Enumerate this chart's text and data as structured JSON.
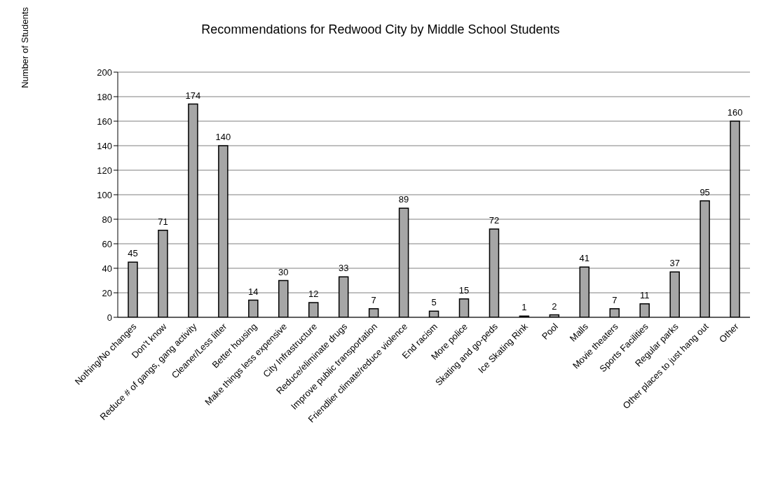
{
  "chart_data": {
    "type": "bar",
    "title": "Recommendations for Redwood City by Middle School Students",
    "ylabel": "Number of Students",
    "categories": [
      "Nothing/No changes",
      "Don't know",
      "Reduce # of gangs, gang activity",
      "Cleaner/Less litter",
      "Better housing",
      "Make things less expensive",
      "City Infrastructure",
      "Reduce/eliminate drugs",
      "Improve public transportation",
      "Friendlier climate/reduce violence",
      "End racism",
      "More police",
      "Skating and go-peds",
      "Ice Skating Rink",
      "Pool",
      "Malls",
      "Movie theaters",
      "Sports Facilities",
      "Regular parks",
      "Other places to just hang out",
      "Other"
    ],
    "values": [
      45,
      71,
      174,
      140,
      14,
      30,
      12,
      33,
      7,
      89,
      5,
      15,
      72,
      1,
      2,
      41,
      7,
      11,
      37,
      95,
      160
    ],
    "color": "#a6a6a6",
    "ylim": [
      0,
      200
    ],
    "yticks": [
      0,
      20,
      40,
      60,
      80,
      100,
      120,
      140,
      160,
      180,
      200
    ],
    "grid": "y",
    "data_labels": true
  }
}
